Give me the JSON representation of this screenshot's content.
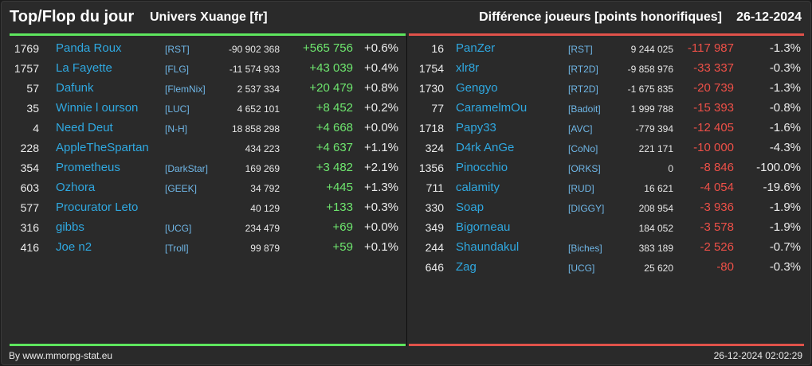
{
  "header": {
    "title": "Top/Flop du jour",
    "universe": "Univers Xuange [fr]",
    "metric": "Différence joueurs [points honorifiques]",
    "date": "26-12-2024"
  },
  "colors": {
    "positive": "#6ee66e",
    "negative": "#ee5048",
    "link": "#2fa8e0"
  },
  "top": [
    {
      "rank": "1769",
      "name": "Panda Roux",
      "guild": "[RST]",
      "total": "-90 902 368",
      "delta": "+565 756",
      "pct": "+0.6%"
    },
    {
      "rank": "1757",
      "name": "La Fayette",
      "guild": "[FLG]",
      "total": "-11 574 933",
      "delta": "+43 039",
      "pct": "+0.4%"
    },
    {
      "rank": "57",
      "name": "Dafunk",
      "guild": "[FlemNix]",
      "total": "2 537 334",
      "delta": "+20 479",
      "pct": "+0.8%"
    },
    {
      "rank": "35",
      "name": "Winnie l ourson",
      "guild": "[LUC]",
      "total": "4 652 101",
      "delta": "+8 452",
      "pct": "+0.2%"
    },
    {
      "rank": "4",
      "name": "Need Deut",
      "guild": "[N-H]",
      "total": "18 858 298",
      "delta": "+4 668",
      "pct": "+0.0%"
    },
    {
      "rank": "228",
      "name": "AppleTheSpartan",
      "guild": "",
      "total": "434 223",
      "delta": "+4 637",
      "pct": "+1.1%"
    },
    {
      "rank": "354",
      "name": "Prometheus",
      "guild": "[DarkStar]",
      "total": "169 269",
      "delta": "+3 482",
      "pct": "+2.1%"
    },
    {
      "rank": "603",
      "name": "Ozhora",
      "guild": "[GEEK]",
      "total": "34 792",
      "delta": "+445",
      "pct": "+1.3%"
    },
    {
      "rank": "577",
      "name": "Procurator Leto",
      "guild": "",
      "total": "40 129",
      "delta": "+133",
      "pct": "+0.3%"
    },
    {
      "rank": "316",
      "name": "gibbs",
      "guild": "[UCG]",
      "total": "234 479",
      "delta": "+69",
      "pct": "+0.0%"
    },
    {
      "rank": "416",
      "name": "Joe n2",
      "guild": "[Troll]",
      "total": "99 879",
      "delta": "+59",
      "pct": "+0.1%"
    }
  ],
  "flop": [
    {
      "rank": "16",
      "name": "PanZer",
      "guild": "[RST]",
      "total": "9 244 025",
      "delta": "-117 987",
      "pct": "-1.3%"
    },
    {
      "rank": "1754",
      "name": "xlr8r",
      "guild": "[RT2D]",
      "total": "-9 858 976",
      "delta": "-33 337",
      "pct": "-0.3%"
    },
    {
      "rank": "1730",
      "name": "Gengyo",
      "guild": "[RT2D]",
      "total": "-1 675 835",
      "delta": "-20 739",
      "pct": "-1.3%"
    },
    {
      "rank": "77",
      "name": "CaramelmOu",
      "guild": "[Badoit]",
      "total": "1 999 788",
      "delta": "-15 393",
      "pct": "-0.8%"
    },
    {
      "rank": "1718",
      "name": "Papy33",
      "guild": "[AVC]",
      "total": "-779 394",
      "delta": "-12 405",
      "pct": "-1.6%"
    },
    {
      "rank": "324",
      "name": "D4rk AnGe",
      "guild": "[CoNo]",
      "total": "221 171",
      "delta": "-10 000",
      "pct": "-4.3%"
    },
    {
      "rank": "1356",
      "name": "Pinocchio",
      "guild": "[ORKS]",
      "total": "0",
      "delta": "-8 846",
      "pct": "-100.0%"
    },
    {
      "rank": "711",
      "name": "calamity",
      "guild": "[RUD]",
      "total": "16 621",
      "delta": "-4 054",
      "pct": "-19.6%"
    },
    {
      "rank": "330",
      "name": "Soap",
      "guild": "[DIGGY]",
      "total": "208 954",
      "delta": "-3 936",
      "pct": "-1.9%"
    },
    {
      "rank": "349",
      "name": "Bigorneau",
      "guild": "",
      "total": "184 052",
      "delta": "-3 578",
      "pct": "-1.9%"
    },
    {
      "rank": "244",
      "name": "Shaundakul",
      "guild": "[Biches]",
      "total": "383 189",
      "delta": "-2 526",
      "pct": "-0.7%"
    },
    {
      "rank": "646",
      "name": "Zag",
      "guild": "[UCG]",
      "total": "25 620",
      "delta": "-80",
      "pct": "-0.3%"
    }
  ],
  "footer": {
    "credit": "By www.mmorpg-stat.eu",
    "timestamp": "26-12-2024 02:02:29"
  }
}
